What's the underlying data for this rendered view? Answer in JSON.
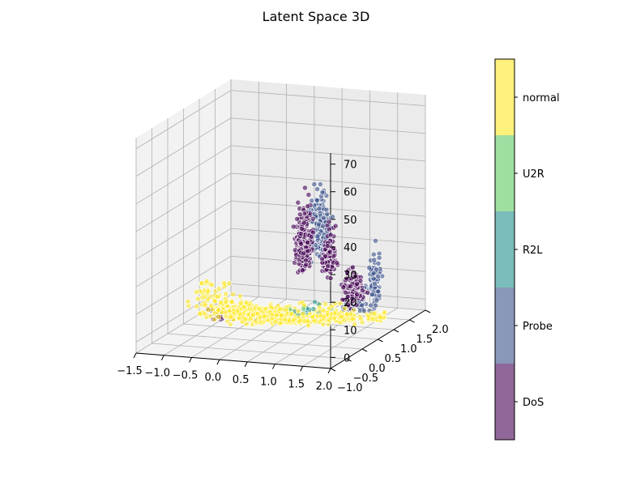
{
  "chart_data": {
    "type": "scatter",
    "title": "Latent Space 3D",
    "projection": "3d",
    "xlabel": "",
    "ylabel": "",
    "zlabel": "",
    "xlim": [
      -1.5,
      2.0
    ],
    "ylim": [
      -1.0,
      2.0
    ],
    "zlim": [
      -4,
      74
    ],
    "x_ticks": [
      "−1.5",
      "−1.0",
      "−0.5",
      "0.0",
      "0.5",
      "1.0",
      "1.5",
      "2.0"
    ],
    "y_ticks": [
      "−1.0",
      "−0.5",
      "0.0",
      "0.5",
      "1.0",
      "1.5",
      "2.0"
    ],
    "z_ticks": [
      "0",
      "10",
      "20",
      "30",
      "40",
      "50",
      "60",
      "70"
    ],
    "grid": true,
    "colorbar": {
      "labels": [
        "DoS",
        "Probe",
        "R2L",
        "U2R",
        "normal"
      ],
      "colors": [
        "#440154",
        "#3b528b",
        "#21918c",
        "#5ec962",
        "#fde725"
      ],
      "alpha": 0.6
    },
    "series": [
      {
        "name": "DoS",
        "color": "#440154",
        "clusters": [
          {
            "x": 0.75,
            "y": 0.35,
            "z": 28,
            "spread_x": 0.1,
            "spread_z": 14,
            "count": 260
          },
          {
            "x": 1.2,
            "y": 0.35,
            "z": 24,
            "spread_x": 0.08,
            "spread_z": 10,
            "count": 140
          },
          {
            "x": 1.55,
            "y": 0.5,
            "z": 12,
            "spread_x": 0.12,
            "spread_z": 8,
            "count": 160
          },
          {
            "x": -0.4,
            "y": 0.0,
            "z": 4,
            "spread_x": 0.35,
            "spread_z": 3,
            "count": 30
          }
        ]
      },
      {
        "name": "Probe",
        "color": "#3b528b",
        "clusters": [
          {
            "x": 0.95,
            "y": 0.5,
            "z": 32,
            "spread_x": 0.18,
            "spread_z": 18,
            "count": 180
          },
          {
            "x": 1.95,
            "y": 0.5,
            "z": 15,
            "spread_x": 0.05,
            "spread_z": 12,
            "count": 90
          },
          {
            "x": 1.6,
            "y": 0.5,
            "z": 8,
            "spread_x": 0.15,
            "spread_z": 6,
            "count": 60
          }
        ]
      },
      {
        "name": "R2L",
        "color": "#21918c",
        "clusters": [
          {
            "x": 0.9,
            "y": 0.3,
            "z": 6,
            "spread_x": 0.3,
            "spread_z": 3,
            "count": 15
          }
        ]
      },
      {
        "name": "U2R",
        "color": "#5ec962",
        "clusters": [
          {
            "x": 0.6,
            "y": 0.3,
            "z": 6,
            "spread_x": 0.2,
            "spread_z": 2,
            "count": 5
          }
        ]
      },
      {
        "name": "normal",
        "color": "#fde725",
        "clusters": [
          {
            "x": 0.2,
            "y": 0.0,
            "z": 5,
            "spread_x": 0.9,
            "spread_z": 4,
            "count": 520
          },
          {
            "x": -0.6,
            "y": 0.0,
            "z": 10,
            "spread_x": 0.4,
            "spread_z": 8,
            "count": 60
          },
          {
            "x": 1.3,
            "y": 0.4,
            "z": 4,
            "spread_x": 0.35,
            "spread_z": 3,
            "count": 140
          },
          {
            "x": 1.9,
            "y": 0.6,
            "z": 3,
            "spread_x": 0.15,
            "spread_z": 2,
            "count": 40
          }
        ]
      }
    ]
  }
}
